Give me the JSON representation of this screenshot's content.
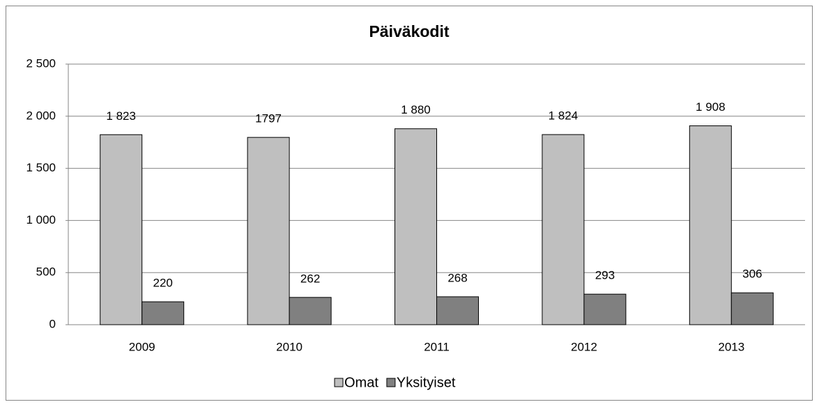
{
  "chart_data": {
    "type": "bar",
    "title": "Päiväkodit",
    "categories": [
      "2009",
      "2010",
      "2011",
      "2012",
      "2013"
    ],
    "series": [
      {
        "name": "Omat",
        "color": "#bfbfbf",
        "values": [
          1823,
          1797,
          1880,
          1824,
          1908
        ],
        "value_labels": [
          "1 823",
          "1797",
          "1 880",
          "1 824",
          "1 908"
        ]
      },
      {
        "name": "Yksityiset",
        "color": "#808080",
        "values": [
          220,
          262,
          268,
          293,
          306
        ]
      }
    ],
    "ylim": [
      0,
      2500
    ],
    "yticks": [
      0,
      500,
      {
        "value": 1000,
        "label": "1 000"
      },
      {
        "value": 1500,
        "label": "1 500"
      },
      {
        "value": 2000,
        "label": "2 000"
      },
      {
        "value": 2500,
        "label": "2 500"
      }
    ],
    "grid": true,
    "legend": "bottom"
  }
}
